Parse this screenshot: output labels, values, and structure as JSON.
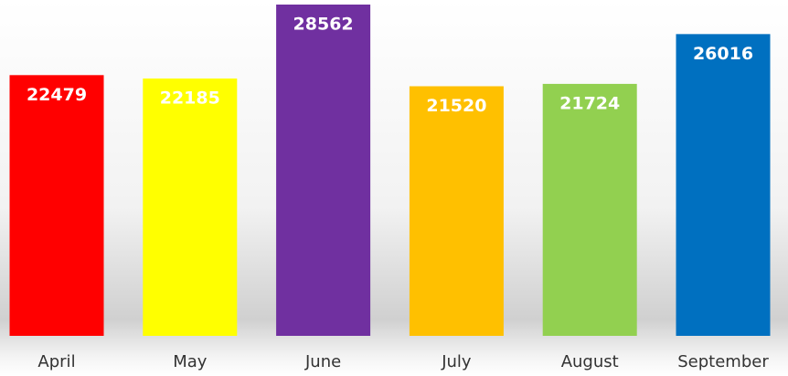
{
  "chart_data": {
    "type": "bar",
    "categories": [
      "April",
      "May",
      "June",
      "July",
      "August",
      "September"
    ],
    "values": [
      22479,
      22185,
      28562,
      21520,
      21724,
      26016
    ],
    "colors": [
      "#ff0000",
      "#ffff00",
      "#7030a0",
      "#ffc000",
      "#92d050",
      "#0070c0"
    ]
  }
}
